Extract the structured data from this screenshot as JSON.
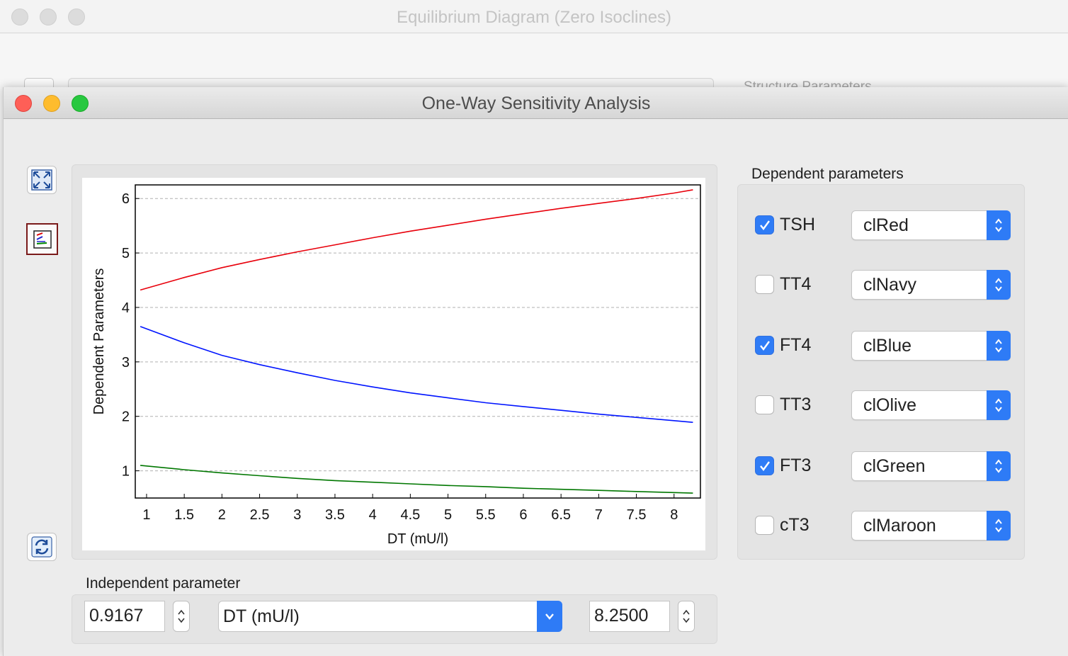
{
  "background_window": {
    "title": "Equilibrium Diagram (Zero Isoclines)",
    "section_label": "Structure Parameters"
  },
  "window": {
    "title": "One-Way Sensitivity Analysis"
  },
  "toolbar": {
    "full_screen_icon": "expand-icon",
    "plot_icon": "chart-icon",
    "refresh_icon": "refresh-icon"
  },
  "dependent_parameters": {
    "label": "Dependent parameters",
    "items": [
      {
        "name": "TSH",
        "checked": true,
        "color": "clRed"
      },
      {
        "name": "TT4",
        "checked": false,
        "color": "clNavy"
      },
      {
        "name": "FT4",
        "checked": true,
        "color": "clBlue"
      },
      {
        "name": "TT3",
        "checked": false,
        "color": "clOlive"
      },
      {
        "name": "FT3",
        "checked": true,
        "color": "clGreen"
      },
      {
        "name": "cT3",
        "checked": false,
        "color": "clMaroon"
      }
    ]
  },
  "independent_parameter": {
    "label": "Independent parameter",
    "min_value": "0.9167",
    "selected": "DT (mU/l)",
    "max_value": "8.2500"
  },
  "chart_data": {
    "type": "line",
    "title": "",
    "xlabel": "DT (mU/l)",
    "ylabel": "Dependent Parameters",
    "xlim": [
      0.85,
      8.35
    ],
    "ylim": [
      0.5,
      6.25
    ],
    "xticks": [
      "1",
      "1.5",
      "2",
      "2.5",
      "3",
      "3.5",
      "4",
      "4.5",
      "5",
      "5.5",
      "6",
      "6.5",
      "7",
      "7.5",
      "8"
    ],
    "yticks": [
      "1",
      "2",
      "3",
      "4",
      "5",
      "6"
    ],
    "grid": "horizontal dashed",
    "x": [
      0.9167,
      1.5,
      2,
      2.5,
      3,
      3.5,
      4,
      4.5,
      5,
      5.5,
      6,
      6.5,
      7,
      7.5,
      8,
      8.25
    ],
    "series": [
      {
        "name": "TSH",
        "color": "#e8000b",
        "values": [
          4.32,
          4.55,
          4.73,
          4.88,
          5.02,
          5.15,
          5.28,
          5.4,
          5.51,
          5.62,
          5.72,
          5.82,
          5.91,
          6.0,
          6.1,
          6.16
        ]
      },
      {
        "name": "FT4",
        "color": "#0014ff",
        "values": [
          3.65,
          3.35,
          3.12,
          2.95,
          2.8,
          2.66,
          2.54,
          2.43,
          2.34,
          2.25,
          2.18,
          2.11,
          2.04,
          1.98,
          1.92,
          1.89
        ]
      },
      {
        "name": "FT3",
        "color": "#007700",
        "values": [
          1.1,
          1.02,
          0.96,
          0.91,
          0.86,
          0.82,
          0.79,
          0.76,
          0.73,
          0.71,
          0.68,
          0.66,
          0.64,
          0.62,
          0.6,
          0.59
        ]
      }
    ]
  }
}
